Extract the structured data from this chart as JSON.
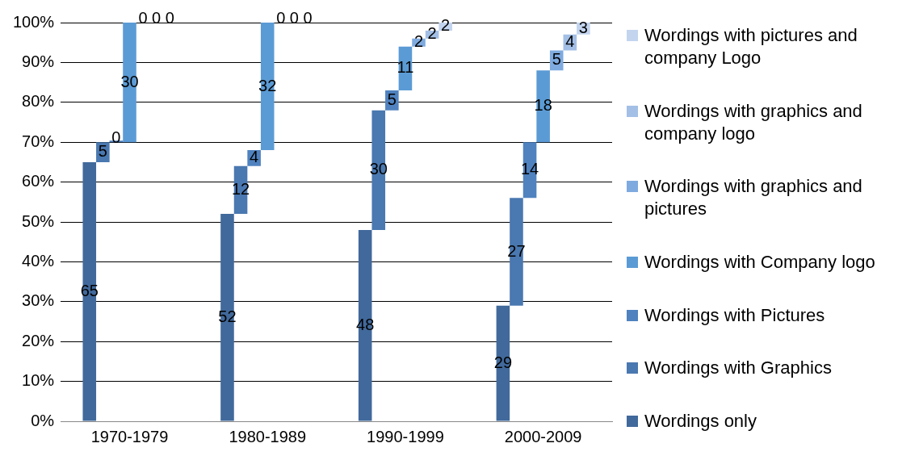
{
  "chart_data": {
    "type": "bar",
    "categories": [
      "1970-1979",
      "1980-1989",
      "1990-1999",
      "2000-2009"
    ],
    "series": [
      {
        "name": "Wordings only",
        "color": "#41699b",
        "values": [
          65,
          52,
          48,
          29
        ]
      },
      {
        "name": "Wordings with Graphics",
        "color": "#4a78b0",
        "values": [
          5,
          12,
          30,
          27
        ]
      },
      {
        "name": "Wordings with Pictures",
        "color": "#4f82bf",
        "values": [
          0,
          4,
          5,
          14
        ]
      },
      {
        "name": "Wordings with Company logo",
        "color": "#5b9bd5",
        "values": [
          30,
          32,
          11,
          18
        ]
      },
      {
        "name": "Wordings with graphics and pictures",
        "color": "#7eaadf",
        "values": [
          0,
          0,
          2,
          5
        ]
      },
      {
        "name": "Wordings with graphics and company logo",
        "color": "#a3bfe5",
        "values": [
          0,
          0,
          2,
          4
        ]
      },
      {
        "name": "Wordings with pictures and company Logo",
        "color": "#c3d4ee",
        "values": [
          0,
          0,
          2,
          3
        ]
      }
    ],
    "stacked": true,
    "ylim": [
      0,
      100
    ],
    "yticks": [
      {
        "value": 0,
        "label": "0%"
      },
      {
        "value": 10,
        "label": "10%"
      },
      {
        "value": 20,
        "label": "20%"
      },
      {
        "value": 30,
        "label": "30%"
      },
      {
        "value": 40,
        "label": "40%"
      },
      {
        "value": 50,
        "label": "50%"
      },
      {
        "value": 60,
        "label": "60%"
      },
      {
        "value": 70,
        "label": "70%"
      },
      {
        "value": 80,
        "label": "80%"
      },
      {
        "value": 90,
        "label": "90%"
      },
      {
        "value": 100,
        "label": "100%"
      }
    ],
    "grid": "y",
    "legend": "right",
    "data_labels": true
  }
}
